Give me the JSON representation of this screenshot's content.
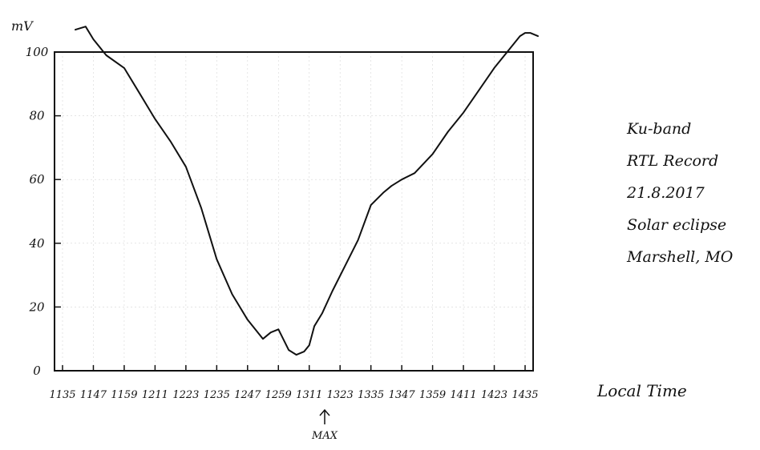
{
  "chart_data": {
    "type": "line",
    "ylabel": "mV",
    "xlabel": "Local Time",
    "ylim": [
      0,
      100
    ],
    "yticks": [
      0,
      20,
      40,
      60,
      80,
      100
    ],
    "xticks": [
      "1135",
      "1147",
      "1159",
      "1211",
      "1223",
      "1235",
      "1247",
      "1259",
      "1311",
      "1323",
      "1335",
      "1347",
      "1359",
      "1411",
      "1423",
      "1435"
    ],
    "max_marker": {
      "at": "1311",
      "label": "MAX"
    },
    "grid": true,
    "series": [
      {
        "x": [
          "1140",
          "1144",
          "1147",
          "1152",
          "1159",
          "1205",
          "1211",
          "1217",
          "1223",
          "1229",
          "1235",
          "1241",
          "1247",
          "1253",
          "1256",
          "1259",
          "1303",
          "1306",
          "1309",
          "1311",
          "1313",
          "1316",
          "1320",
          "1325",
          "1330",
          "1335",
          "1340",
          "1343",
          "1347",
          "1352",
          "1359",
          "1405",
          "1411",
          "1417",
          "1423",
          "1429",
          "1433",
          "1435",
          "1437",
          "1440"
        ],
        "values": [
          107,
          108,
          104,
          99,
          95,
          87,
          79,
          72,
          64,
          51,
          35,
          24,
          16,
          10,
          12,
          13,
          6.5,
          5,
          6,
          8,
          14,
          18,
          25,
          33,
          41,
          52,
          56,
          58,
          60,
          62,
          68,
          75,
          81,
          88,
          95,
          101,
          105,
          106,
          106,
          105
        ]
      }
    ]
  },
  "annotation": {
    "lines": [
      "Ku-band",
      "RTL Record",
      "21.8.2017",
      "Solar eclipse",
      "Marshell, MO"
    ]
  }
}
